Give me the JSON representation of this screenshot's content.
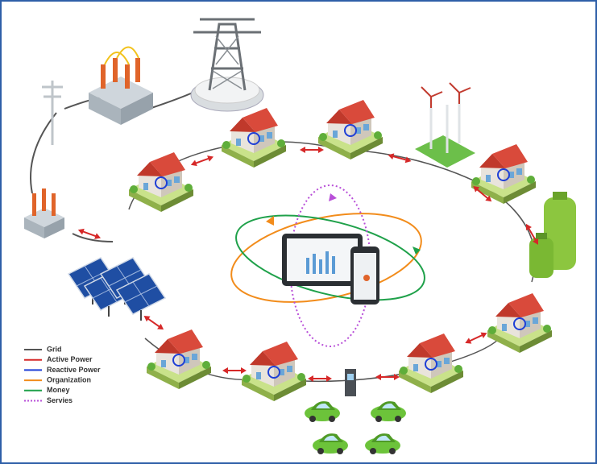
{
  "legend": {
    "items": [
      {
        "label": "Grid",
        "color": "#555555",
        "style": "solid"
      },
      {
        "label": "Active Power",
        "color": "#d62828",
        "style": "solid"
      },
      {
        "label": "Reactive Power",
        "color": "#1f3fd6",
        "style": "solid"
      },
      {
        "label": "Organization",
        "color": "#f28c1b",
        "style": "solid"
      },
      {
        "label": "Money",
        "color": "#1fa14a",
        "style": "solid"
      },
      {
        "label": "Servies",
        "color": "#b84fd8",
        "style": "dotted"
      }
    ]
  }
}
